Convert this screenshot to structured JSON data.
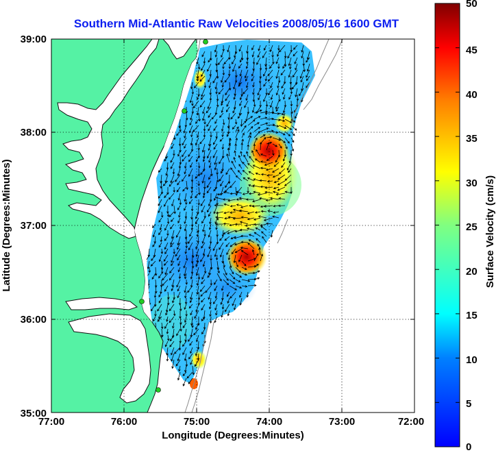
{
  "title": "Southern Mid-Atlantic Raw Velocities 2008/05/16 1600 GMT",
  "xlabel": "Longitude (Degrees:Minutes)",
  "ylabel": "Latitude (Degrees:Minutes)",
  "x_ticks": [
    "77:00",
    "76:00",
    "75:00",
    "74:00",
    "73:00",
    "72:00"
  ],
  "y_ticks": [
    "39:00",
    "38:00",
    "37:00",
    "36:00",
    "35:00"
  ],
  "colorbar": {
    "label": "Surface Velocity (cm/s)",
    "ticks": [
      "50",
      "45",
      "40",
      "35",
      "30",
      "25",
      "20",
      "15",
      "10",
      "5",
      "0"
    ],
    "range": [
      0,
      50
    ],
    "colormap": "jet"
  },
  "colors": {
    "land": "#55f2a4",
    "coastline": "#101010",
    "contour": "#8a8a8a",
    "arrows": "#000000",
    "station": "#22cc22"
  },
  "map_extent": {
    "lon": [
      -77,
      -72
    ],
    "lat": [
      35,
      39
    ]
  },
  "grid": "dotted",
  "hot_spots": [
    {
      "lon": -74.1,
      "lat": 37.8,
      "velocity": 42
    },
    {
      "lon": -74.3,
      "lat": 36.5,
      "velocity": 45
    },
    {
      "lon": -74.0,
      "lat": 37.3,
      "velocity": 30
    }
  ]
}
